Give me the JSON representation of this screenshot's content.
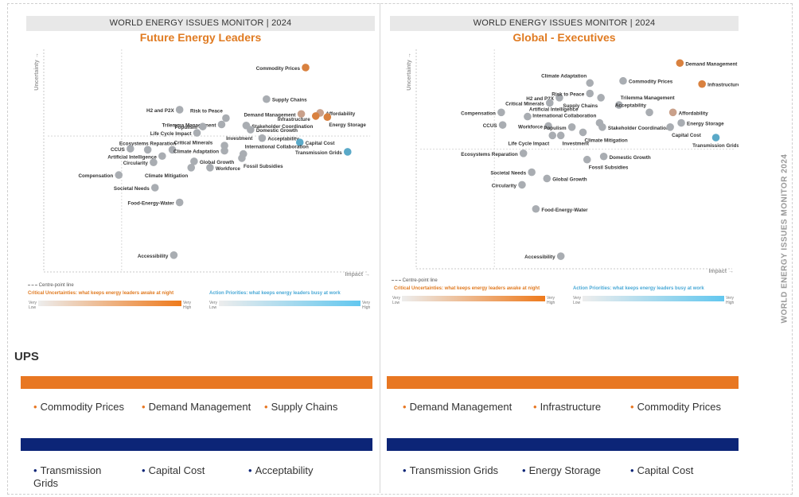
{
  "side_title": "WORLD ENERGY ISSUES MONITOR 2024",
  "section_heading": "UPS",
  "charts": [
    {
      "banner": "WORLD ENERGY ISSUES MONITOR | 2024",
      "subtitle": "Future Energy Leaders",
      "y_axis_label": "Uncertainty →",
      "x_axis_label": "Impact →",
      "legend": {
        "centre_line": "Centre-point line",
        "critical": "Critical Uncertainties: what keeps energy leaders awake at night",
        "action": "Action Priorities: what keeps energy leaders busy at work",
        "low": "Very Low",
        "high": "Very High"
      }
    },
    {
      "banner": "WORLD ENERGY ISSUES MONITOR | 2024",
      "subtitle": "Global - Executives",
      "y_axis_label": "Uncertainty →",
      "x_axis_label": "Impact →",
      "legend": {
        "centre_line": "Centre-point line",
        "critical": "Critical Uncertainties: what keeps energy leaders awake at night",
        "action": "Action Priorities: what keeps energy leaders busy at work",
        "low": "Very Low",
        "high": "Very High"
      }
    }
  ],
  "chart_data": [
    {
      "type": "scatter",
      "title": "Future Energy Leaders",
      "xlabel": "Impact",
      "ylabel": "Uncertainty",
      "xlim": [
        0,
        100
      ],
      "ylim": [
        0,
        100
      ],
      "centre": [
        17,
        64.5
      ],
      "colors": {
        "grey": "#a9adb2",
        "orange": "#d9813f",
        "tan": "#c9a08a",
        "blue": "#5aa9c8"
      },
      "points": [
        {
          "label": "Commodity Prices",
          "x": 80.5,
          "y": 97,
          "c": "orange",
          "pos": "left"
        },
        {
          "label": "Supply Chains",
          "x": 67,
          "y": 82,
          "c": "grey",
          "pos": "right"
        },
        {
          "label": "H2 and P2X",
          "x": 37,
          "y": 77,
          "c": "grey",
          "pos": "left"
        },
        {
          "label": "Risk to Peace",
          "x": 53,
          "y": 73,
          "c": "grey",
          "pos": "above-left"
        },
        {
          "label": "Demand Management",
          "x": 79,
          "y": 75,
          "c": "tan",
          "pos": "left"
        },
        {
          "label": "Affordability",
          "x": 85.5,
          "y": 75.5,
          "c": "tan",
          "pos": "right"
        },
        {
          "label": "Infrastructure",
          "x": 84,
          "y": 74,
          "c": "orange",
          "pos": "left-low"
        },
        {
          "label": "Energy Storage",
          "x": 88,
          "y": 73.5,
          "c": "orange",
          "pos": "below-right"
        },
        {
          "label": "Trilemma Management",
          "x": 51.5,
          "y": 70,
          "c": "grey",
          "pos": "left"
        },
        {
          "label": "Populism",
          "x": 45,
          "y": 69,
          "c": "grey",
          "pos": "left"
        },
        {
          "label": "Stakeholder Coordination",
          "x": 60,
          "y": 69.5,
          "c": "grey",
          "pos": "right"
        },
        {
          "label": "Domestic Growth",
          "x": 61.5,
          "y": 67.5,
          "c": "grey",
          "pos": "right"
        },
        {
          "label": "Life Cycle Impact",
          "x": 43,
          "y": 66,
          "c": "grey",
          "pos": "left"
        },
        {
          "label": "Acceptability",
          "x": 65.5,
          "y": 63.5,
          "c": "grey",
          "pos": "right"
        },
        {
          "label": "Capital Cost",
          "x": 78.5,
          "y": 61.5,
          "c": "blue",
          "pos": "right"
        },
        {
          "label": "Investment",
          "x": 52.5,
          "y": 60,
          "c": "grey",
          "pos": "above-right"
        },
        {
          "label": "Ecosystems Reparation",
          "x": 26,
          "y": 58,
          "c": "grey",
          "pos": "above"
        },
        {
          "label": "Critical Minerals",
          "x": 34.5,
          "y": 58,
          "c": "grey",
          "pos": "above-right"
        },
        {
          "label": "Climate Adaptation",
          "x": 52.5,
          "y": 57.5,
          "c": "grey",
          "pos": "left"
        },
        {
          "label": "CCUS",
          "x": 20,
          "y": 58.5,
          "c": "grey",
          "pos": "left"
        },
        {
          "label": "International Collaboration",
          "x": 59,
          "y": 56,
          "c": "grey",
          "pos": "above-right"
        },
        {
          "label": "Transmission Grids",
          "x": 95,
          "y": 57,
          "c": "blue",
          "pos": "left"
        },
        {
          "label": "Artificial Intelligence",
          "x": 31,
          "y": 55,
          "c": "grey",
          "pos": "left"
        },
        {
          "label": "Fossil Subsidies",
          "x": 58.5,
          "y": 54,
          "c": "grey",
          "pos": "below-right"
        },
        {
          "label": "Global Growth",
          "x": 42,
          "y": 52.5,
          "c": "grey",
          "pos": "right"
        },
        {
          "label": "Circularity",
          "x": 28,
          "y": 52,
          "c": "grey",
          "pos": "left"
        },
        {
          "label": "Workforce",
          "x": 47.5,
          "y": 49.5,
          "c": "grey",
          "pos": "right"
        },
        {
          "label": "Climate Mitigation",
          "x": 41,
          "y": 49.5,
          "c": "grey",
          "pos": "below-left"
        },
        {
          "label": "Compensation",
          "x": 16,
          "y": 46,
          "c": "grey",
          "pos": "left-inline"
        },
        {
          "label": "Societal Needs",
          "x": 28.5,
          "y": 40,
          "c": "grey",
          "pos": "left"
        },
        {
          "label": "Food-Energy-Water",
          "x": 37,
          "y": 33,
          "c": "grey",
          "pos": "left"
        },
        {
          "label": "Accessibility",
          "x": 35,
          "y": 8,
          "c": "grey",
          "pos": "left"
        }
      ]
    },
    {
      "type": "scatter",
      "title": "Global - Executives",
      "xlabel": "Impact",
      "ylabel": "Uncertainty",
      "xlim": [
        0,
        100
      ],
      "ylim": [
        0,
        100
      ],
      "centre": [
        17,
        57
      ],
      "colors": {
        "grey": "#a9adb2",
        "orange": "#d9813f",
        "tan": "#c9a08a",
        "blue": "#5aa9c8"
      },
      "points": [
        {
          "label": "Demand Management",
          "x": 84,
          "y": 98,
          "c": "orange",
          "pos": "right"
        },
        {
          "label": "Infrastructure",
          "x": 92,
          "y": 88,
          "c": "orange",
          "pos": "right"
        },
        {
          "label": "Commodity Prices",
          "x": 63.5,
          "y": 89.5,
          "c": "grey",
          "pos": "right"
        },
        {
          "label": "Climate Adaptation",
          "x": 51.5,
          "y": 88.5,
          "c": "grey",
          "pos": "above-left"
        },
        {
          "label": "H2 and P2X",
          "x": 40.5,
          "y": 81.5,
          "c": "grey",
          "pos": "left"
        },
        {
          "label": "Risk to Peace",
          "x": 51.5,
          "y": 83.5,
          "c": "grey",
          "pos": "left"
        },
        {
          "label": "Supply Chains",
          "x": 55.5,
          "y": 81.5,
          "c": "grey",
          "pos": "below-left"
        },
        {
          "label": "Trilemma Management",
          "x": 62,
          "y": 78,
          "c": "grey",
          "pos": "above-right"
        },
        {
          "label": "Critical Minerals",
          "x": 37,
          "y": 79,
          "c": "grey",
          "pos": "left"
        },
        {
          "label": "Acceptability",
          "x": 73,
          "y": 74.5,
          "c": "grey",
          "pos": "above-left"
        },
        {
          "label": "Compensation",
          "x": 19.5,
          "y": 74.5,
          "c": "grey",
          "pos": "left"
        },
        {
          "label": "Artificial Intelligence",
          "x": 29,
          "y": 72.5,
          "c": "grey",
          "pos": "above-right"
        },
        {
          "label": "Affordability",
          "x": 81.5,
          "y": 74.5,
          "c": "tan",
          "pos": "right"
        },
        {
          "label": "International Collaboration",
          "x": 55,
          "y": 69.5,
          "c": "grey",
          "pos": "above-left"
        },
        {
          "label": "CCUS",
          "x": 20,
          "y": 68.5,
          "c": "grey",
          "pos": "left"
        },
        {
          "label": "Workforce",
          "x": 36.5,
          "y": 68,
          "c": "grey",
          "pos": "left"
        },
        {
          "label": "Energy Storage",
          "x": 84.5,
          "y": 69.5,
          "c": "grey",
          "pos": "right"
        },
        {
          "label": "Populism",
          "x": 45,
          "y": 67.5,
          "c": "grey",
          "pos": "left"
        },
        {
          "label": "Stakeholder Coordination",
          "x": 56,
          "y": 67.5,
          "c": "grey",
          "pos": "right"
        },
        {
          "label": "Capital Cost",
          "x": 80.5,
          "y": 67.5,
          "c": "grey",
          "pos": "below-right"
        },
        {
          "label": "Climate Mitigation",
          "x": 49,
          "y": 65,
          "c": "grey",
          "pos": "below-right"
        },
        {
          "label": "Transmission Grids",
          "x": 97,
          "y": 62.5,
          "c": "blue",
          "pos": "below"
        },
        {
          "label": "Life Cycle Impact",
          "x": 38,
          "y": 63.5,
          "c": "grey",
          "pos": "below-left"
        },
        {
          "label": "Investment",
          "x": 41,
          "y": 63.5,
          "c": "grey",
          "pos": "below-right"
        },
        {
          "label": "Ecosystems Reparation",
          "x": 27.5,
          "y": 55,
          "c": "grey",
          "pos": "left"
        },
        {
          "label": "Domestic Growth",
          "x": 56.5,
          "y": 53.5,
          "c": "grey",
          "pos": "right"
        },
        {
          "label": "Fossil Subsidies",
          "x": 50.5,
          "y": 52,
          "c": "grey",
          "pos": "below-right"
        },
        {
          "label": "Societal Needs",
          "x": 30.5,
          "y": 46,
          "c": "grey",
          "pos": "left"
        },
        {
          "label": "Global Growth",
          "x": 36,
          "y": 43,
          "c": "grey",
          "pos": "right"
        },
        {
          "label": "Circularity",
          "x": 27,
          "y": 40,
          "c": "grey",
          "pos": "left"
        },
        {
          "label": "Food-Energy-Water",
          "x": 32,
          "y": 28.5,
          "c": "grey",
          "pos": "right"
        },
        {
          "label": "Accessibility",
          "x": 41,
          "y": 6,
          "c": "grey",
          "pos": "left"
        }
      ]
    }
  ],
  "bottom": {
    "left": {
      "orange_items": [
        "Commodity Prices",
        "Demand Management",
        "Supply Chains"
      ],
      "navy_items": [
        "Transmission Grids",
        "Capital Cost",
        "Acceptability"
      ]
    },
    "right": {
      "orange_items": [
        "Demand Management",
        "Infrastructure",
        "Commodity Prices"
      ],
      "navy_items": [
        "Transmission Grids",
        "Energy Storage",
        "Capital Cost"
      ]
    }
  }
}
